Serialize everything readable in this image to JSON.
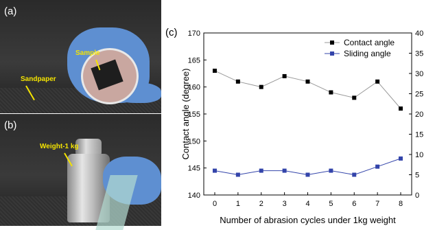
{
  "photos": {
    "a": {
      "panel_label": "(a)",
      "annotations": [
        "Sample",
        "Sandpaper"
      ]
    },
    "b": {
      "panel_label": "(b)",
      "annotations": [
        "Weight-1 kg"
      ]
    }
  },
  "chart_data": {
    "type": "line",
    "panel_label": "(c)",
    "xlabel": "Number of abrasion cycles under 1kg weight",
    "ylabel": "Contact angle (degree)",
    "x": [
      0,
      1,
      2,
      3,
      4,
      5,
      6,
      7,
      8
    ],
    "xlim": [
      0,
      8
    ],
    "ylim": [
      140,
      170
    ],
    "y2lim": [
      0,
      40
    ],
    "yticks": [
      140,
      145,
      150,
      155,
      160,
      165,
      170
    ],
    "y2ticks": [
      0,
      5,
      10,
      15,
      20,
      25,
      30,
      35,
      40
    ],
    "series": [
      {
        "name": "Contact angle",
        "axis": "left",
        "color": "#000000",
        "line_color": "#999999",
        "marker": "square",
        "values": [
          163,
          161,
          160,
          162,
          161,
          159,
          158,
          161,
          156
        ]
      },
      {
        "name": "Sliding angle",
        "axis": "right",
        "color": "#3344aa",
        "line_color": "#3344aa",
        "marker": "square",
        "values": [
          6,
          5,
          6,
          6,
          5,
          6,
          5,
          7,
          9
        ]
      }
    ],
    "legend_position": "top-right",
    "grid": false
  }
}
